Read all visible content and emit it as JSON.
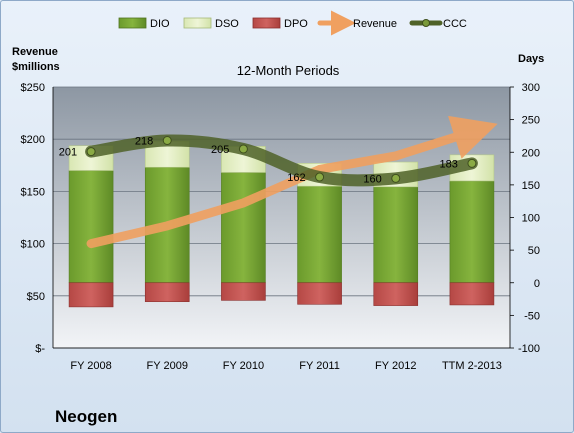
{
  "company": "Neogen",
  "chart_data": {
    "type": "bar",
    "title": "12-Month Periods",
    "ylabel_left": "Revenue $millions",
    "ylabel_right": "Days",
    "categories": [
      "FY 2008",
      "FY 2009",
      "FY 2010",
      "FY 2011",
      "FY 2012",
      "TTM 2-2013"
    ],
    "ylim_left": [
      0,
      250
    ],
    "yticks_left": [
      "$-",
      "$50",
      "$100",
      "$150",
      "$200",
      "$250"
    ],
    "ylim_right": [
      -100,
      300
    ],
    "yticks_right": [
      "-100",
      "-50",
      "0",
      "50",
      "100",
      "150",
      "200",
      "250",
      "300"
    ],
    "legend_position": "top",
    "grid": true,
    "series": [
      {
        "name": "DIO",
        "axis": "right",
        "kind": "stacked-bar",
        "color": "#6e9a2e",
        "values": [
          172,
          177,
          169,
          148,
          147,
          156
        ]
      },
      {
        "name": "DSO",
        "axis": "right",
        "kind": "stacked-bar",
        "color": "#e4efc2",
        "values": [
          38,
          40,
          40,
          35,
          38,
          40
        ]
      },
      {
        "name": "DPO",
        "axis": "right",
        "kind": "bar-negative",
        "color": "#c0504d",
        "values": [
          -37,
          -29,
          -27,
          -33,
          -35,
          -34
        ]
      },
      {
        "name": "Revenue",
        "axis": "left",
        "kind": "line",
        "color": "#f0a060",
        "values": [
          100,
          117,
          139,
          171,
          184,
          207
        ]
      },
      {
        "name": "CCC",
        "axis": "right",
        "kind": "line",
        "color": "#4f6228",
        "values": [
          201,
          218,
          205,
          162,
          160,
          183
        ],
        "labels": [
          "201",
          "218",
          "205",
          "162",
          "160",
          "183"
        ]
      }
    ]
  }
}
